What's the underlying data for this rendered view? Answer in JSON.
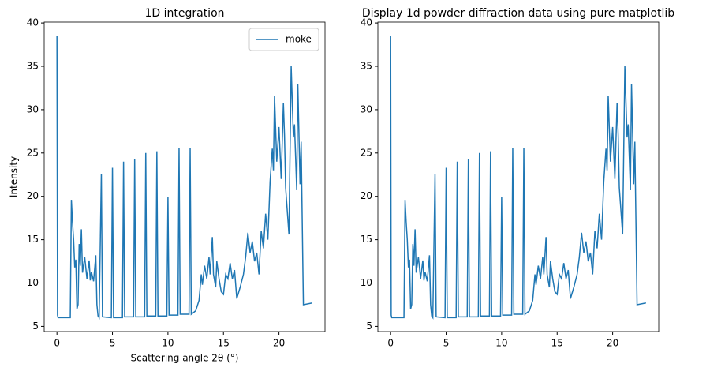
{
  "chart_data": [
    {
      "type": "line",
      "title": "1D integration",
      "x_label": "Scattering angle 2θ (°)",
      "y_label": "Intensity",
      "x": [
        0,
        0.05,
        0.1,
        1.2,
        1.3,
        1.4,
        1.5,
        1.6,
        1.7,
        1.8,
        1.9,
        2.0,
        2.1,
        2.2,
        2.3,
        2.5,
        2.7,
        2.9,
        3.0,
        3.1,
        3.3,
        3.5,
        3.6,
        3.7,
        3.8,
        4.0,
        4.1,
        4.9,
        5.0,
        5.1,
        5.9,
        6.0,
        6.1,
        6.9,
        7.0,
        7.1,
        7.9,
        8.0,
        8.1,
        8.9,
        9.0,
        9.1,
        9.9,
        10.0,
        10.1,
        10.9,
        11.0,
        11.1,
        11.9,
        12.0,
        12.1,
        12.5,
        12.8,
        13.0,
        13.1,
        13.3,
        13.5,
        13.7,
        13.8,
        14.0,
        14.1,
        14.3,
        14.4,
        14.6,
        14.8,
        15.0,
        15.2,
        15.4,
        15.6,
        15.8,
        16.0,
        16.2,
        16.5,
        16.8,
        17.0,
        17.2,
        17.4,
        17.6,
        17.8,
        18.0,
        18.2,
        18.4,
        18.6,
        18.8,
        19.0,
        19.2,
        19.4,
        19.5,
        19.6,
        19.8,
        20.0,
        20.2,
        20.4,
        20.5,
        20.6,
        20.9,
        21.1,
        21.3,
        21.4,
        21.6,
        21.7,
        21.9,
        22.0,
        22.2,
        23.0
      ],
      "series": [
        {
          "name": "moke",
          "color": "#1f77b4",
          "values": [
            38.5,
            6.3,
            6.0,
            6.0,
            19.6,
            17,
            15,
            11.8,
            12.7,
            7.0,
            7.5,
            14.5,
            12,
            16.2,
            11.2,
            13,
            10.5,
            12.6,
            10.3,
            11.3,
            10.2,
            13.2,
            7.5,
            6.2,
            6.0,
            22.6,
            6.1,
            6.0,
            23.3,
            6.0,
            6.0,
            24.0,
            6.1,
            6.1,
            24.3,
            6.1,
            6.1,
            25.0,
            6.2,
            6.2,
            25.2,
            6.2,
            6.2,
            19.9,
            6.3,
            6.3,
            25.6,
            6.4,
            6.4,
            25.6,
            6.4,
            6.8,
            8,
            11,
            9.8,
            12,
            10.5,
            13,
            11,
            15.3,
            11,
            9.5,
            12.5,
            10.5,
            9,
            8.7,
            11,
            10.5,
            12.3,
            10.5,
            11.5,
            8.2,
            9.5,
            11,
            13,
            15.8,
            13.5,
            14.8,
            12.5,
            13.5,
            11,
            16,
            14,
            18,
            15,
            21.7,
            25.5,
            23,
            31.6,
            24,
            28,
            22,
            30.8,
            27,
            21,
            15.6,
            35,
            26.8,
            28.3,
            20.7,
            33,
            21.4,
            26.3,
            7.5,
            7.7
          ]
        }
      ],
      "xlim": [
        -1.15,
        24.15
      ],
      "ylim": [
        4.4,
        40.1
      ],
      "xticks": [
        0,
        5,
        10,
        15,
        20
      ],
      "yticks": [
        5,
        10,
        15,
        20,
        25,
        30,
        35,
        40
      ],
      "legend": "upper right"
    },
    {
      "type": "line",
      "title": "Display 1d powder diffraction data using pure matplotlib",
      "x": [
        0,
        0.05,
        0.1,
        1.2,
        1.3,
        1.4,
        1.5,
        1.6,
        1.7,
        1.8,
        1.9,
        2.0,
        2.1,
        2.2,
        2.3,
        2.5,
        2.7,
        2.9,
        3.0,
        3.1,
        3.3,
        3.5,
        3.6,
        3.7,
        3.8,
        4.0,
        4.1,
        4.9,
        5.0,
        5.1,
        5.9,
        6.0,
        6.1,
        6.9,
        7.0,
        7.1,
        7.9,
        8.0,
        8.1,
        8.9,
        9.0,
        9.1,
        9.9,
        10.0,
        10.1,
        10.9,
        11.0,
        11.1,
        11.9,
        12.0,
        12.1,
        12.5,
        12.8,
        13.0,
        13.1,
        13.3,
        13.5,
        13.7,
        13.8,
        14.0,
        14.1,
        14.3,
        14.4,
        14.6,
        14.8,
        15.0,
        15.2,
        15.4,
        15.6,
        15.8,
        16.0,
        16.2,
        16.5,
        16.8,
        17.0,
        17.2,
        17.4,
        17.6,
        17.8,
        18.0,
        18.2,
        18.4,
        18.6,
        18.8,
        19.0,
        19.2,
        19.4,
        19.5,
        19.6,
        19.8,
        20.0,
        20.2,
        20.4,
        20.5,
        20.6,
        20.9,
        21.1,
        21.3,
        21.4,
        21.6,
        21.7,
        21.9,
        22.0,
        22.2,
        23.0
      ],
      "series": [
        {
          "color": "#1f77b4",
          "values": [
            38.5,
            6.3,
            6.0,
            6.0,
            19.6,
            17,
            15,
            11.8,
            12.7,
            7.0,
            7.5,
            14.5,
            12,
            16.2,
            11.2,
            13,
            10.5,
            12.6,
            10.3,
            11.3,
            10.2,
            13.2,
            7.5,
            6.2,
            6.0,
            22.6,
            6.1,
            6.0,
            23.3,
            6.0,
            6.0,
            24.0,
            6.1,
            6.1,
            24.3,
            6.1,
            6.1,
            25.0,
            6.2,
            6.2,
            25.2,
            6.2,
            6.2,
            19.9,
            6.3,
            6.3,
            25.6,
            6.4,
            6.4,
            25.6,
            6.4,
            6.8,
            8,
            11,
            9.8,
            12,
            10.5,
            13,
            11,
            15.3,
            11,
            9.5,
            12.5,
            10.5,
            9,
            8.7,
            11,
            10.5,
            12.3,
            10.5,
            11.5,
            8.2,
            9.5,
            11,
            13,
            15.8,
            13.5,
            14.8,
            12.5,
            13.5,
            11,
            16,
            14,
            18,
            15,
            21.7,
            25.5,
            23,
            31.6,
            24,
            28,
            22,
            30.8,
            27,
            21,
            15.6,
            35,
            26.8,
            28.3,
            20.7,
            33,
            21.4,
            26.3,
            7.5,
            7.7
          ]
        }
      ],
      "xlim": [
        -1.15,
        24.15
      ],
      "ylim": [
        4.4,
        40.1
      ],
      "xticks": [
        0,
        5,
        10,
        15,
        20
      ],
      "yticks": [
        5,
        10,
        15,
        20,
        25,
        30,
        35,
        40
      ]
    }
  ]
}
